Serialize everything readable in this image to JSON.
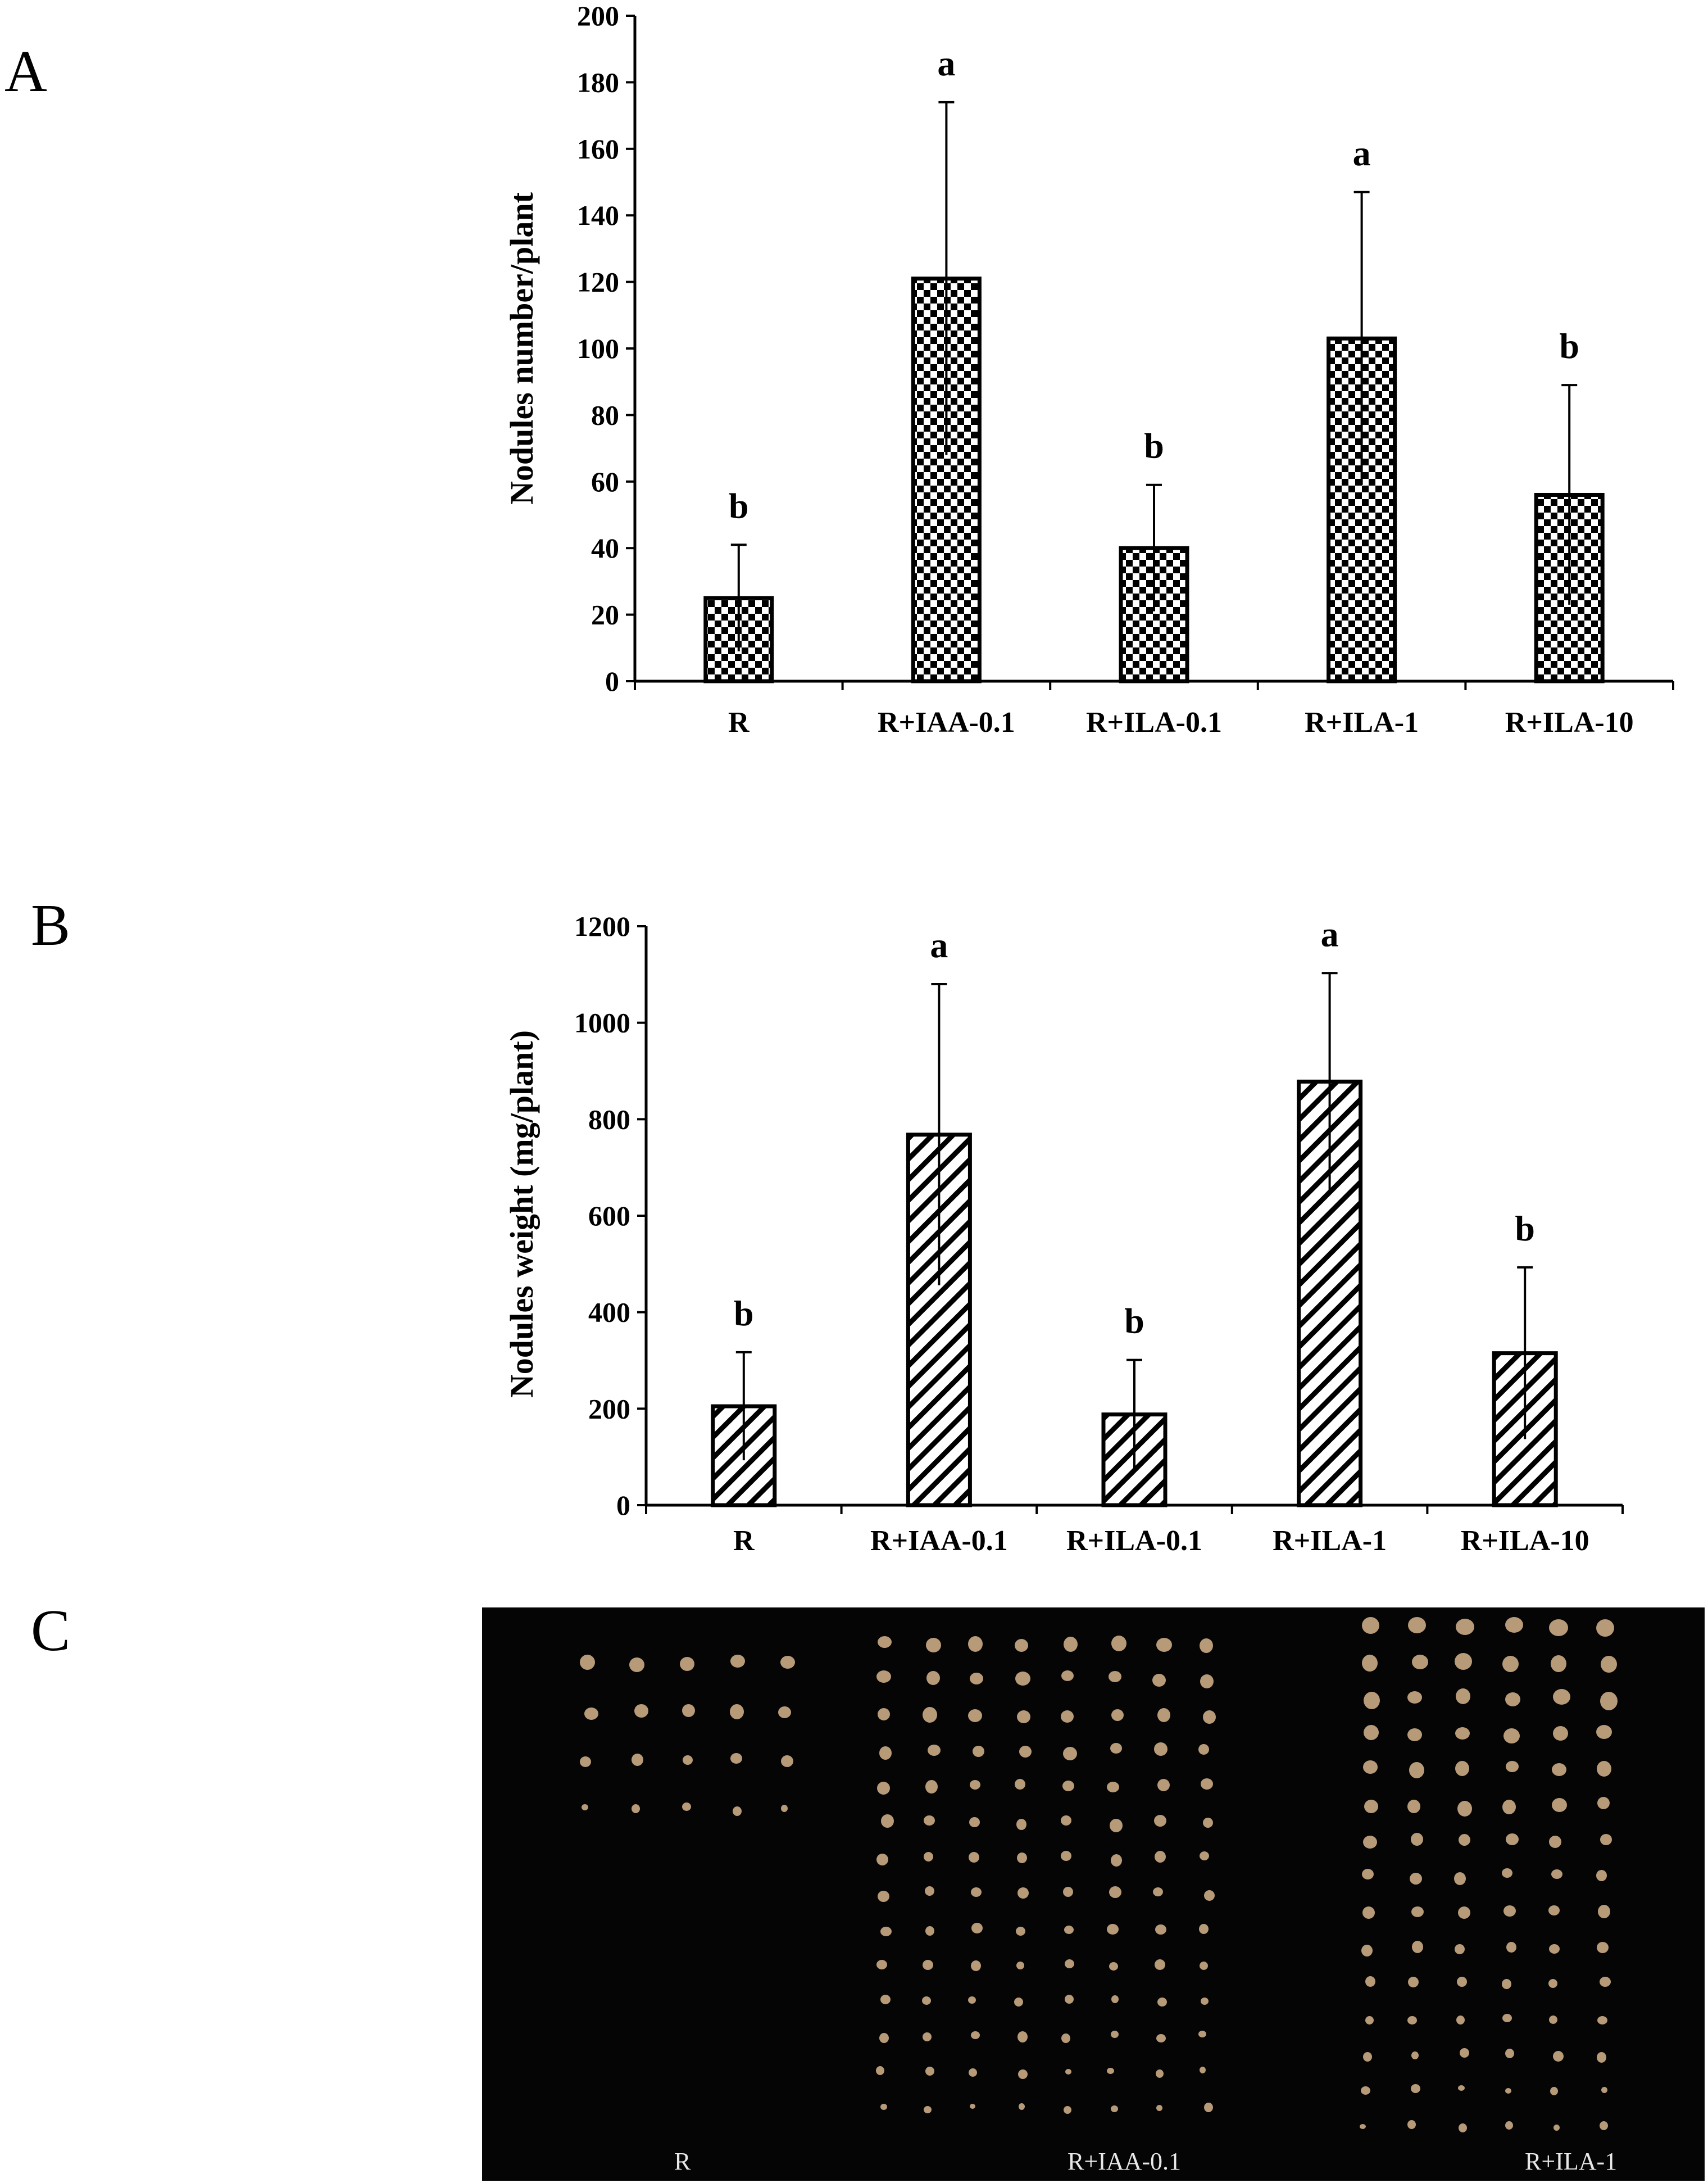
{
  "panels": {
    "a": "A",
    "b": "B",
    "c": "C"
  },
  "chart_data": [
    {
      "type": "bar",
      "panel": "A",
      "ylabel": "Nodules number/plant",
      "ylim": [
        0,
        200
      ],
      "yticks": [
        0,
        20,
        40,
        60,
        80,
        100,
        120,
        140,
        160,
        180,
        200
      ],
      "pattern": "checkered",
      "categories": [
        "R",
        "R+IAA-0.1",
        "R+ILA-0.1",
        "R+ILA-1",
        "R+ILA-10"
      ],
      "values": [
        25,
        121,
        40,
        103,
        56
      ],
      "errors": [
        16,
        53,
        19,
        44,
        33
      ],
      "letters": [
        "b",
        "a",
        "b",
        "a",
        "b"
      ]
    },
    {
      "type": "bar",
      "panel": "B",
      "ylabel": "Nodules weight (mg/plant)",
      "ylim": [
        0,
        1200
      ],
      "yticks": [
        0,
        200,
        400,
        600,
        800,
        1000,
        1200
      ],
      "pattern": "diagonal",
      "categories": [
        "R",
        "R+IAA-0.1",
        "R+ILA-0.1",
        "R+ILA-1",
        "R+ILA-10"
      ],
      "values": [
        205,
        768,
        188,
        878,
        315
      ],
      "errors": [
        112,
        312,
        113,
        225,
        178
      ],
      "letters": [
        "b",
        "a",
        "b",
        "a",
        "b"
      ]
    }
  ],
  "photo": {
    "labels": [
      "R",
      "R+IAA-0.1",
      "R+ILA-1"
    ],
    "groups": [
      {
        "rows": 4,
        "cols": 5
      },
      {
        "rows": 14,
        "cols": 8
      },
      {
        "rows": 15,
        "cols": 6
      }
    ]
  }
}
